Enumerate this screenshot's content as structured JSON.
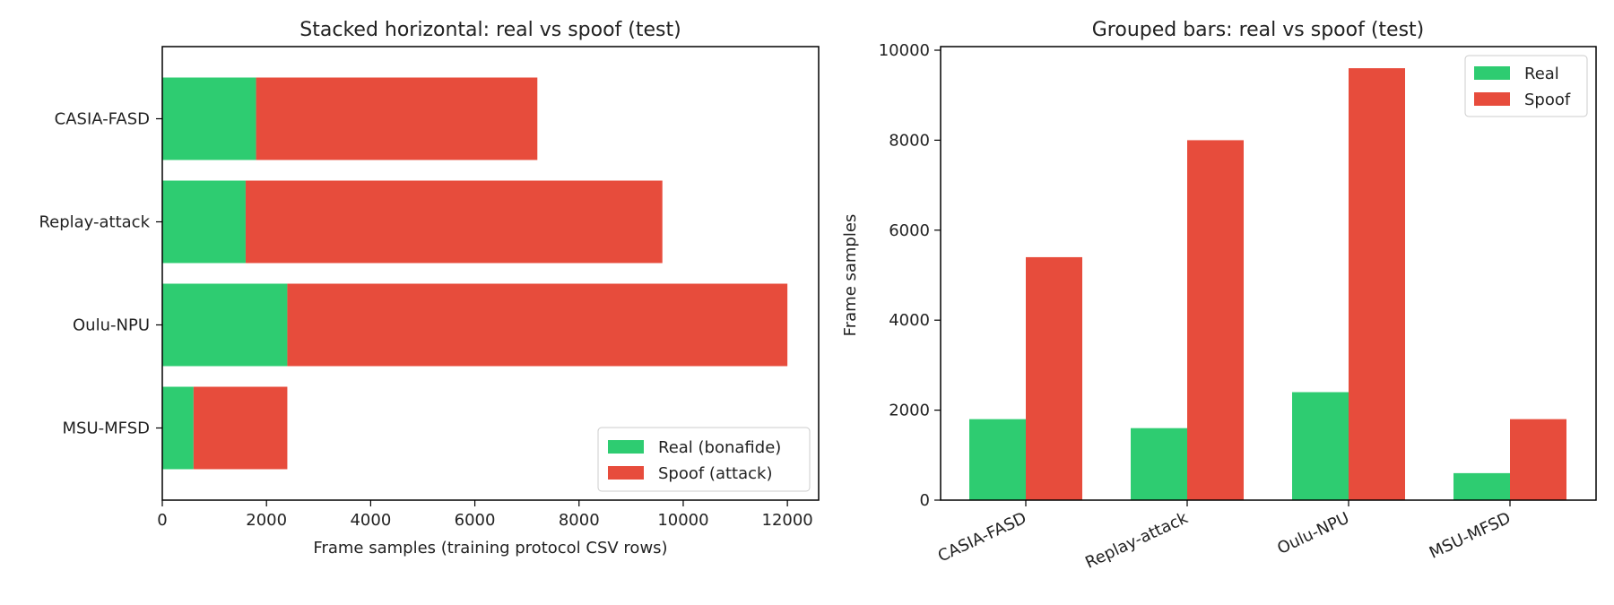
{
  "colors": {
    "real": "#2ecc71",
    "spoof": "#e74c3c"
  },
  "chart_data": [
    {
      "type": "bar",
      "orientation": "horizontal",
      "stacked": true,
      "title": "Stacked horizontal: real vs spoof (test)",
      "xlabel": "Frame samples (training protocol CSV rows)",
      "ylabel": "",
      "categories": [
        "CASIA-FASD",
        "Replay-attack",
        "Oulu-NPU",
        "MSU-MFSD"
      ],
      "series": [
        {
          "name": "Real (bonafide)",
          "values": [
            1800,
            1600,
            2400,
            600
          ]
        },
        {
          "name": "Spoof (attack)",
          "values": [
            5400,
            8000,
            9600,
            1800
          ]
        }
      ],
      "xlim": [
        0,
        12600
      ],
      "xticks": [
        0,
        2000,
        4000,
        6000,
        8000,
        10000,
        12000
      ],
      "legend": "bottom-right",
      "grid": false
    },
    {
      "type": "bar",
      "orientation": "vertical",
      "stacked": false,
      "title": "Grouped bars: real vs spoof (test)",
      "xlabel": "",
      "ylabel": "Frame samples",
      "categories": [
        "CASIA-FASD",
        "Replay-attack",
        "Oulu-NPU",
        "MSU-MFSD"
      ],
      "series": [
        {
          "name": "Real",
          "values": [
            1800,
            1600,
            2400,
            600
          ]
        },
        {
          "name": "Spoof",
          "values": [
            5400,
            8000,
            9600,
            1800
          ]
        }
      ],
      "ylim": [
        0,
        10080
      ],
      "yticks": [
        0,
        2000,
        4000,
        6000,
        8000,
        10000
      ],
      "legend": "top-right",
      "grid": false
    }
  ]
}
